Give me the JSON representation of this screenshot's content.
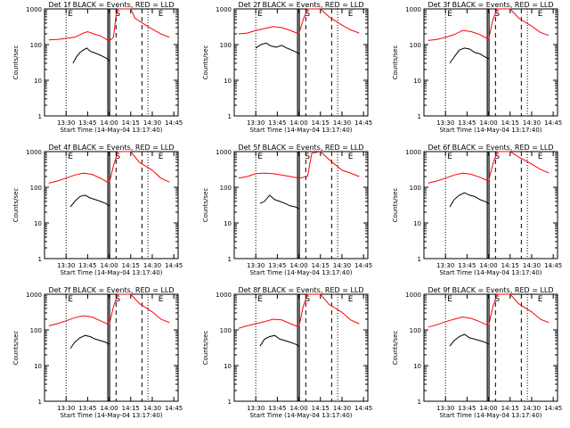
{
  "chart_data": [
    {
      "type": "line",
      "title": "Det 1f BLACK = Events, RED = LLD",
      "xlabel": "Start Time (14-May-04 13:17:40)",
      "ylabel": "Counts/sec",
      "xticks": [
        "13:30",
        "13:45",
        "14:00",
        "14:15",
        "14:30",
        "14:45"
      ],
      "yticks": [
        "1",
        "10",
        "100",
        "1000"
      ],
      "ylim": [
        1,
        1000
      ],
      "yscale": "log",
      "markers": {
        "E1": "E",
        "S": "S",
        "E2": "E"
      },
      "series": [
        {
          "name": "BLACK = Events",
          "color": "#000000",
          "x": [
            13.58,
            13.62,
            13.66,
            13.7,
            13.74,
            13.78,
            13.82,
            13.86,
            13.9,
            13.94,
            13.98,
            14.0
          ],
          "values": [
            30,
            45,
            60,
            70,
            80,
            65,
            60,
            55,
            50,
            45,
            40,
            35
          ]
        },
        {
          "name": "RED = LLD",
          "color": "#ff0000",
          "x": [
            13.3,
            13.4,
            13.5,
            13.6,
            13.7,
            13.75,
            13.82,
            13.9,
            13.95,
            14.0,
            14.05,
            14.08,
            14.1,
            14.25,
            14.3,
            14.45,
            14.6,
            14.7
          ],
          "values": [
            135,
            140,
            150,
            160,
            210,
            230,
            200,
            175,
            150,
            125,
            160,
            650,
            1000,
            1000,
            550,
            320,
            200,
            160
          ]
        }
      ]
    },
    {
      "type": "line",
      "title": "Det 2f BLACK = Events, RED = LLD",
      "xlabel": "Start Time (14-May-04 13:17:40)",
      "ylabel": "Counts/sec",
      "xticks": [
        "13:30",
        "13:45",
        "14:00",
        "14:15",
        "14:30",
        "14:45"
      ],
      "yticks": [
        "1",
        "10",
        "100",
        "1000"
      ],
      "ylim": [
        1,
        1000
      ],
      "yscale": "log",
      "markers": {
        "E1": "E",
        "S": "S",
        "E2": "E"
      },
      "series": [
        {
          "name": "BLACK = Events",
          "color": "#000000",
          "x": [
            13.5,
            13.56,
            13.62,
            13.68,
            13.74,
            13.8,
            13.86,
            13.92,
            13.98,
            14.0
          ],
          "values": [
            80,
            100,
            110,
            90,
            85,
            95,
            80,
            70,
            60,
            55
          ]
        },
        {
          "name": "RED = LLD",
          "color": "#ff0000",
          "x": [
            13.3,
            13.4,
            13.5,
            13.6,
            13.7,
            13.8,
            13.9,
            14.0,
            14.05,
            14.1,
            14.25,
            14.35,
            14.5,
            14.6,
            14.7
          ],
          "values": [
            200,
            210,
            250,
            280,
            320,
            300,
            250,
            200,
            500,
            1000,
            1000,
            600,
            350,
            260,
            210
          ]
        }
      ]
    },
    {
      "type": "line",
      "title": "Det 3f BLACK = Events, RED = LLD",
      "xlabel": "Start Time (14-May-04 13:17:40)",
      "ylabel": "Counts/sec",
      "xticks": [
        "13:30",
        "13:45",
        "14:00",
        "14:15",
        "14:30",
        "14:45"
      ],
      "yticks": [
        "1",
        "10",
        "100",
        "1000"
      ],
      "ylim": [
        1,
        1000
      ],
      "yscale": "log",
      "markers": {
        "E1": "E",
        "S": "S",
        "E2": "E"
      },
      "series": [
        {
          "name": "BLACK = Events",
          "color": "#000000",
          "x": [
            13.55,
            13.6,
            13.66,
            13.72,
            13.78,
            13.84,
            13.9,
            13.96,
            14.0
          ],
          "values": [
            30,
            45,
            70,
            80,
            75,
            60,
            55,
            45,
            40
          ]
        },
        {
          "name": "RED = LLD",
          "color": "#ff0000",
          "x": [
            13.3,
            13.4,
            13.5,
            13.6,
            13.7,
            13.8,
            13.9,
            14.0,
            14.05,
            14.1,
            14.25,
            14.35,
            14.5,
            14.6,
            14.7
          ],
          "values": [
            130,
            140,
            160,
            190,
            250,
            230,
            190,
            140,
            500,
            1000,
            1000,
            550,
            330,
            220,
            180
          ]
        }
      ]
    },
    {
      "type": "line",
      "title": "Det 4f BLACK = Events, RED = LLD",
      "xlabel": "Start Time (14-May-04 13:17:40)",
      "ylabel": "Counts/sec",
      "xticks": [
        "13:30",
        "13:45",
        "14:00",
        "14:15",
        "14:30",
        "14:45"
      ],
      "yticks": [
        "1",
        "10",
        "100",
        "1000"
      ],
      "ylim": [
        1,
        1000
      ],
      "yscale": "log",
      "markers": {
        "E1": "E",
        "S": "S",
        "E2": "E"
      },
      "series": [
        {
          "name": "BLACK = Events",
          "color": "#000000",
          "x": [
            13.55,
            13.6,
            13.66,
            13.72,
            13.78,
            13.84,
            13.9,
            13.96,
            14.0
          ],
          "values": [
            28,
            40,
            55,
            60,
            50,
            45,
            40,
            35,
            30
          ]
        },
        {
          "name": "RED = LLD",
          "color": "#ff0000",
          "x": [
            13.3,
            13.4,
            13.5,
            13.6,
            13.7,
            13.8,
            13.9,
            14.0,
            14.05,
            14.1,
            14.25,
            14.35,
            14.5,
            14.6,
            14.7
          ],
          "values": [
            130,
            150,
            180,
            220,
            250,
            230,
            180,
            130,
            400,
            1000,
            1000,
            500,
            300,
            180,
            140
          ]
        }
      ]
    },
    {
      "type": "line",
      "title": "Det 5f BLACK = Events, RED = LLD",
      "xlabel": "Start Time (14-May-04 13:17:40)",
      "ylabel": "Counts/sec",
      "xticks": [
        "13:30",
        "13:45",
        "14:00",
        "14:15",
        "14:30",
        "14:45"
      ],
      "yticks": [
        "1",
        "10",
        "100",
        "1000"
      ],
      "ylim": [
        1,
        1000
      ],
      "yscale": "log",
      "markers": {
        "E1": "E",
        "S": "S",
        "E2": "E"
      },
      "series": [
        {
          "name": "BLACK = Events",
          "color": "#000000",
          "x": [
            13.55,
            13.6,
            13.66,
            13.72,
            13.78,
            13.84,
            13.9,
            13.96,
            14.0
          ],
          "values": [
            35,
            40,
            60,
            45,
            40,
            35,
            30,
            28,
            25
          ]
        },
        {
          "name": "RED = LLD",
          "color": "#ff0000",
          "x": [
            13.3,
            13.4,
            13.5,
            13.6,
            13.7,
            13.8,
            13.9,
            14.0,
            14.1,
            14.15,
            14.25,
            14.35,
            14.5,
            14.6,
            14.7
          ],
          "values": [
            180,
            200,
            240,
            250,
            240,
            220,
            200,
            180,
            200,
            900,
            1000,
            600,
            300,
            250,
            200
          ]
        }
      ]
    },
    {
      "type": "line",
      "title": "Det 6f BLACK = Events, RED = LLD",
      "xlabel": "Start Time (14-May-04 13:17:40)",
      "ylabel": "Counts/sec",
      "xticks": [
        "13:30",
        "13:45",
        "14:00",
        "14:15",
        "14:30",
        "14:45"
      ],
      "yticks": [
        "1",
        "10",
        "100",
        "1000"
      ],
      "ylim": [
        1,
        1000
      ],
      "yscale": "log",
      "markers": {
        "E1": "E",
        "S": "S",
        "E2": "E"
      },
      "series": [
        {
          "name": "BLACK = Events",
          "color": "#000000",
          "x": [
            13.55,
            13.6,
            13.66,
            13.72,
            13.78,
            13.84,
            13.9,
            13.96,
            14.0
          ],
          "values": [
            28,
            45,
            60,
            70,
            60,
            55,
            45,
            40,
            35
          ]
        },
        {
          "name": "RED = LLD",
          "color": "#ff0000",
          "x": [
            13.3,
            13.4,
            13.5,
            13.6,
            13.7,
            13.8,
            13.9,
            14.0,
            14.05,
            14.1,
            14.25,
            14.35,
            14.5,
            14.6,
            14.7
          ],
          "values": [
            130,
            150,
            180,
            220,
            250,
            230,
            190,
            150,
            450,
            1000,
            1000,
            700,
            450,
            320,
            250
          ]
        }
      ]
    },
    {
      "type": "line",
      "title": "Det 7f BLACK = Events, RED = LLD",
      "xlabel": "Start Time (14-May-04 13:17:40)",
      "ylabel": "Counts/sec",
      "xticks": [
        "13:30",
        "13:45",
        "14:00",
        "14:15",
        "14:30",
        "14:45"
      ],
      "yticks": [
        "1",
        "10",
        "100",
        "1000"
      ],
      "ylim": [
        1,
        1000
      ],
      "yscale": "log",
      "markers": {
        "E1": "E",
        "S": "S",
        "E2": "E"
      },
      "series": [
        {
          "name": "BLACK = Events",
          "color": "#000000",
          "x": [
            13.55,
            13.6,
            13.66,
            13.72,
            13.78,
            13.84,
            13.9,
            13.96,
            14.0
          ],
          "values": [
            30,
            45,
            60,
            70,
            65,
            55,
            50,
            45,
            40
          ]
        },
        {
          "name": "RED = LLD",
          "color": "#ff0000",
          "x": [
            13.3,
            13.4,
            13.5,
            13.6,
            13.7,
            13.8,
            13.9,
            14.0,
            14.05,
            14.1,
            14.25,
            14.35,
            14.5,
            14.6,
            14.7
          ],
          "values": [
            130,
            150,
            180,
            220,
            250,
            230,
            180,
            140,
            450,
            1000,
            1000,
            550,
            320,
            200,
            160
          ]
        }
      ]
    },
    {
      "type": "line",
      "title": "Det 8f BLACK = Events, RED = LLD",
      "xlabel": "Start Time (14-May-04 13:17:40)",
      "ylabel": "Counts/sec",
      "xticks": [
        "13:30",
        "13:45",
        "14:00",
        "14:15",
        "14:30",
        "14:45"
      ],
      "yticks": [
        "1",
        "10",
        "100",
        "1000"
      ],
      "ylim": [
        1,
        1000
      ],
      "yscale": "log",
      "markers": {
        "E1": "E",
        "S": "S",
        "E2": "E"
      },
      "series": [
        {
          "name": "BLACK = Events",
          "color": "#000000",
          "x": [
            13.55,
            13.6,
            13.66,
            13.72,
            13.78,
            13.84,
            13.9,
            13.96,
            14.0
          ],
          "values": [
            35,
            55,
            65,
            70,
            55,
            50,
            45,
            40,
            35
          ]
        },
        {
          "name": "RED = LLD",
          "color": "#ff0000",
          "x": [
            13.3,
            13.4,
            13.5,
            13.6,
            13.7,
            13.8,
            13.9,
            14.0,
            14.05,
            14.1,
            14.25,
            14.35,
            14.5,
            14.6,
            14.7
          ],
          "values": [
            110,
            130,
            150,
            170,
            200,
            190,
            150,
            120,
            450,
            1000,
            1000,
            520,
            310,
            190,
            150
          ]
        }
      ]
    },
    {
      "type": "line",
      "title": "Det 9f BLACK = Events, RED = LLD",
      "xlabel": "Start Time (14-May-04 13:17:40)",
      "ylabel": "Counts/sec",
      "xticks": [
        "13:30",
        "13:45",
        "14:00",
        "14:15",
        "14:30",
        "14:45"
      ],
      "yticks": [
        "1",
        "10",
        "100",
        "1000"
      ],
      "ylim": [
        1,
        1000
      ],
      "yscale": "log",
      "markers": {
        "E1": "E",
        "S": "S",
        "E2": "E"
      },
      "series": [
        {
          "name": "BLACK = Events",
          "color": "#000000",
          "x": [
            13.55,
            13.6,
            13.66,
            13.72,
            13.78,
            13.84,
            13.9,
            13.96,
            14.0
          ],
          "values": [
            35,
            50,
            65,
            75,
            60,
            55,
            50,
            45,
            40
          ]
        },
        {
          "name": "RED = LLD",
          "color": "#ff0000",
          "x": [
            13.3,
            13.4,
            13.5,
            13.6,
            13.7,
            13.8,
            13.9,
            14.0,
            14.05,
            14.1,
            14.25,
            14.35,
            14.5,
            14.6,
            14.7
          ],
          "values": [
            120,
            140,
            170,
            200,
            230,
            210,
            170,
            130,
            450,
            1000,
            1000,
            540,
            320,
            200,
            160
          ]
        }
      ]
    }
  ]
}
